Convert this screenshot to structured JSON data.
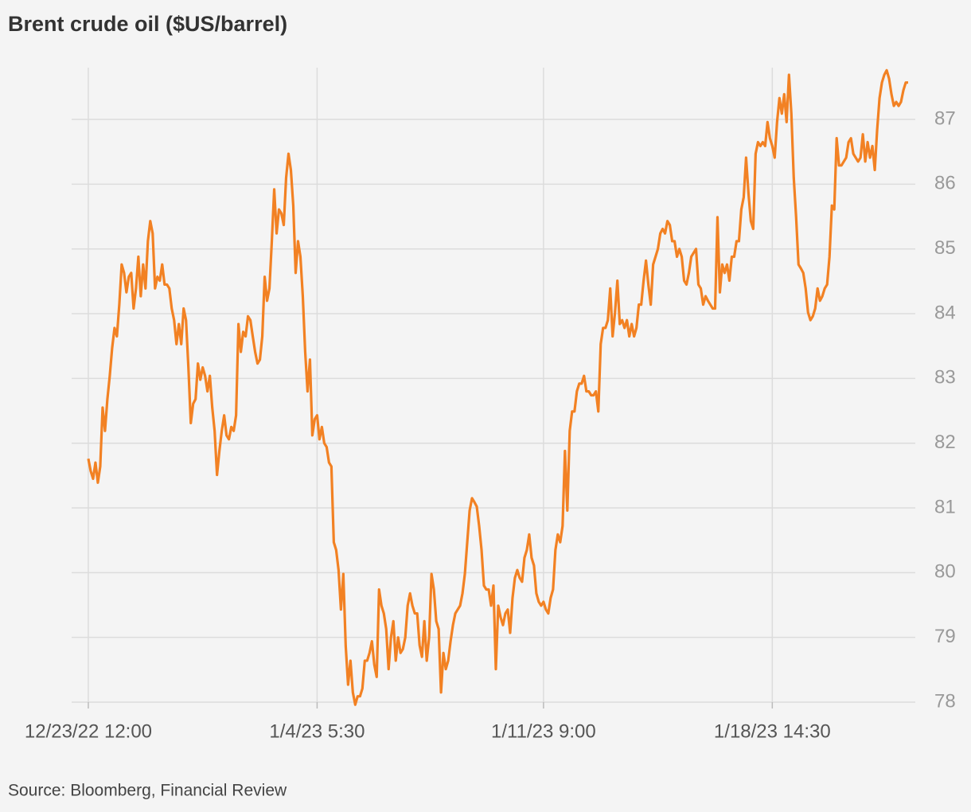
{
  "chart_data": {
    "type": "line",
    "title": "Brent crude oil ($US/barrel)",
    "source": "Source: Bloomberg, Financial Review",
    "color": "#f28123",
    "grid": true,
    "xlim": [
      -7,
      347
    ],
    "xticks": [
      {
        "value": 0,
        "label": "12/23/22 12:00"
      },
      {
        "value": 96,
        "label": "1/4/23 5:30"
      },
      {
        "value": 191,
        "label": "1/11/23 9:00"
      },
      {
        "value": 287,
        "label": "1/18/23 14:30"
      }
    ],
    "ylim": [
      78,
      87.8
    ],
    "yticks": [
      78,
      79,
      80,
      81,
      82,
      83,
      84,
      85,
      86,
      87
    ],
    "values": [
      81.76,
      81.57,
      81.45,
      81.7,
      81.39,
      81.64,
      82.55,
      82.19,
      82.68,
      83.04,
      83.47,
      83.78,
      83.65,
      84.14,
      84.76,
      84.63,
      84.33,
      84.57,
      84.63,
      84.08,
      84.39,
      84.88,
      84.27,
      84.76,
      84.39,
      85.12,
      85.43,
      85.24,
      84.39,
      84.57,
      84.51,
      84.76,
      84.45,
      84.45,
      84.39,
      84.08,
      83.9,
      83.53,
      83.84,
      83.53,
      84.08,
      83.9,
      83.17,
      82.31,
      82.61,
      82.68,
      83.23,
      82.98,
      83.17,
      83.04,
      82.8,
      83.04,
      82.55,
      82.19,
      81.51,
      81.88,
      82.19,
      82.43,
      82.12,
      82.06,
      82.25,
      82.19,
      82.43,
      83.84,
      83.41,
      83.72,
      83.65,
      83.96,
      83.9,
      83.65,
      83.41,
      83.23,
      83.29,
      83.65,
      84.57,
      84.2,
      84.39,
      85.12,
      85.92,
      85.24,
      85.61,
      85.55,
      85.37,
      86.1,
      86.47,
      86.22,
      85.67,
      84.63,
      85.12,
      84.88,
      84.27,
      83.41,
      82.8,
      83.29,
      82.12,
      82.37,
      82.43,
      82.06,
      82.25,
      82.0,
      81.94,
      81.7,
      81.64,
      80.47,
      80.35,
      80.04,
      79.43,
      79.98,
      78.87,
      78.27,
      78.64,
      78.15,
      77.96,
      78.09,
      78.09,
      78.21,
      78.64,
      78.64,
      78.76,
      78.94,
      78.58,
      78.39,
      79.74,
      79.49,
      79.37,
      79.13,
      78.51,
      79.0,
      79.25,
      78.64,
      79.0,
      78.76,
      78.82,
      79.0,
      79.49,
      79.68,
      79.49,
      79.37,
      79.37,
      78.88,
      78.7,
      79.25,
      78.64,
      79.0,
      79.98,
      79.74,
      79.25,
      79.13,
      78.15,
      78.76,
      78.51,
      78.64,
      78.94,
      79.19,
      79.37,
      79.43,
      79.49,
      79.68,
      79.98,
      80.47,
      80.96,
      81.15,
      81.09,
      81.02,
      80.72,
      80.35,
      79.8,
      79.74,
      79.74,
      79.49,
      79.8,
      78.51,
      79.49,
      79.31,
      79.19,
      79.37,
      79.43,
      79.07,
      79.61,
      79.92,
      80.04,
      79.92,
      79.86,
      80.23,
      80.35,
      80.59,
      80.23,
      80.11,
      79.68,
      79.55,
      79.49,
      79.55,
      79.43,
      79.37,
      79.61,
      79.74,
      80.35,
      80.59,
      80.47,
      80.72,
      81.88,
      80.96,
      82.19,
      82.49,
      82.49,
      82.8,
      82.92,
      82.92,
      83.04,
      82.8,
      82.8,
      82.74,
      82.74,
      82.8,
      82.49,
      83.53,
      83.78,
      83.78,
      83.9,
      84.39,
      83.65,
      84.02,
      84.51,
      83.84,
      83.9,
      83.78,
      83.9,
      83.65,
      83.84,
      83.65,
      83.78,
      84.14,
      84.14,
      84.51,
      84.82,
      84.45,
      84.14,
      84.76,
      84.88,
      85.0,
      85.24,
      85.31,
      85.24,
      85.43,
      85.37,
      85.12,
      85.12,
      84.88,
      85.0,
      84.88,
      84.51,
      84.45,
      84.63,
      84.88,
      84.94,
      85.0,
      84.45,
      84.39,
      84.14,
      84.27,
      84.2,
      84.14,
      84.08,
      84.08,
      85.49,
      84.33,
      84.76,
      84.63,
      84.76,
      84.51,
      84.88,
      84.88,
      85.12,
      85.12,
      85.61,
      85.8,
      86.41,
      85.86,
      85.43,
      85.31,
      86.47,
      86.65,
      86.59,
      86.65,
      86.59,
      86.96,
      86.71,
      86.59,
      86.41,
      86.96,
      87.33,
      87.09,
      87.39,
      86.96,
      87.69,
      87.09,
      86.1,
      85.49,
      84.76,
      84.7,
      84.63,
      84.39,
      84.02,
      83.9,
      83.96,
      84.08,
      84.39,
      84.2,
      84.27,
      84.39,
      84.45,
      84.88,
      85.67,
      85.61,
      86.71,
      86.29,
      86.29,
      86.35,
      86.41,
      86.65,
      86.71,
      86.47,
      86.41,
      86.35,
      86.41,
      86.77,
      86.35,
      86.65,
      86.41,
      86.59,
      86.22,
      86.84,
      87.33,
      87.57,
      87.69,
      87.76,
      87.63,
      87.39,
      87.21,
      87.27,
      87.21,
      87.27,
      87.45,
      87.57,
      87.57
    ]
  }
}
